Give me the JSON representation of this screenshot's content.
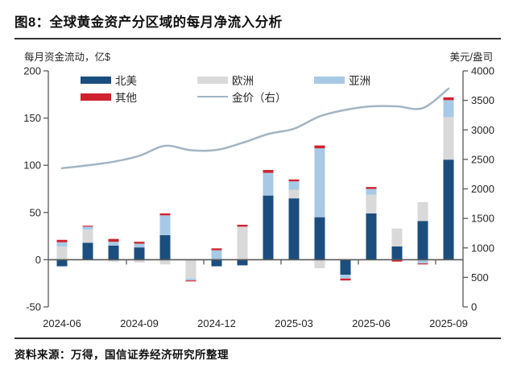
{
  "header": {
    "title": "图8：全球黄金资产分区域的每月净流入分析"
  },
  "axes": {
    "left_unit": "每月资金流动，亿$",
    "right_unit": "美元/盎司"
  },
  "legend": {
    "north_america": "北美",
    "europe": "欧洲",
    "asia": "亚洲",
    "other": "其他",
    "gold_price": "金价（右）"
  },
  "footer": {
    "source": "资料来源：万得，国信证券经济研究所整理"
  },
  "colors": {
    "north_america": "#1B4E7E",
    "europe": "#D9D9D9",
    "asia": "#A7C9E6",
    "other": "#D0212E",
    "gold_line": "#A3B5C4",
    "axis": "#595959",
    "tick_text": "#262626"
  },
  "chart_data": {
    "type": "bar",
    "subtype": "stacked-bars-with-right-axis-line",
    "categories": [
      "2024-06",
      "2024-07",
      "2024-08",
      "2024-09",
      "2024-10",
      "2024-11",
      "2024-12",
      "2025-01",
      "2025-02",
      "2025-03",
      "2025-04",
      "2025-05",
      "2025-06",
      "2025-07",
      "2025-08",
      "2025-09"
    ],
    "series": [
      {
        "name": "北美",
        "color_key": "north_america",
        "values": [
          -7,
          18,
          15,
          13,
          26,
          0,
          -7,
          -6,
          68,
          65,
          45,
          -16,
          49,
          14,
          41,
          106
        ]
      },
      {
        "name": "欧洲",
        "color_key": "europe",
        "values": [
          14,
          14,
          -2,
          -3,
          -5,
          -20,
          0,
          35,
          0,
          9,
          -9,
          0,
          20,
          19,
          20,
          45
        ]
      },
      {
        "name": "亚洲",
        "color_key": "asia",
        "values": [
          4.5,
          3,
          4,
          4,
          21,
          -2,
          10,
          0,
          24,
          9,
          73,
          -4,
          6,
          0,
          -4,
          18
        ]
      },
      {
        "name": "其他",
        "color_key": "other",
        "values": [
          2.5,
          1,
          3,
          2,
          2,
          -1,
          2,
          2,
          3,
          2,
          3,
          -2,
          2,
          -2,
          -1,
          3
        ]
      }
    ],
    "line_series": {
      "name": "金价（右）",
      "axis": "right",
      "color_key": "gold_line",
      "values": [
        2350,
        2400,
        2460,
        2560,
        2730,
        2655,
        2660,
        2780,
        2930,
        3020,
        3230,
        3340,
        3400,
        3400,
        3370,
        3700
      ]
    },
    "x_tick_labels": [
      "2024-06",
      "2024-09",
      "2024-12",
      "2025-03",
      "2025-06",
      "2025-09"
    ],
    "x_tick_label_indices": [
      0,
      3,
      6,
      9,
      12,
      15
    ],
    "y_axis_left": {
      "label": "每月资金流动，亿$",
      "ticks": [
        200,
        150,
        100,
        50,
        0,
        -50
      ],
      "min": -50,
      "max": 200
    },
    "y_axis_right": {
      "label": "美元/盎司",
      "ticks": [
        4000,
        3500,
        3000,
        2500,
        2000,
        1500,
        1000,
        500,
        0
      ],
      "min": 0,
      "max": 4000
    },
    "grid": false,
    "legend_position": "top-inside"
  }
}
